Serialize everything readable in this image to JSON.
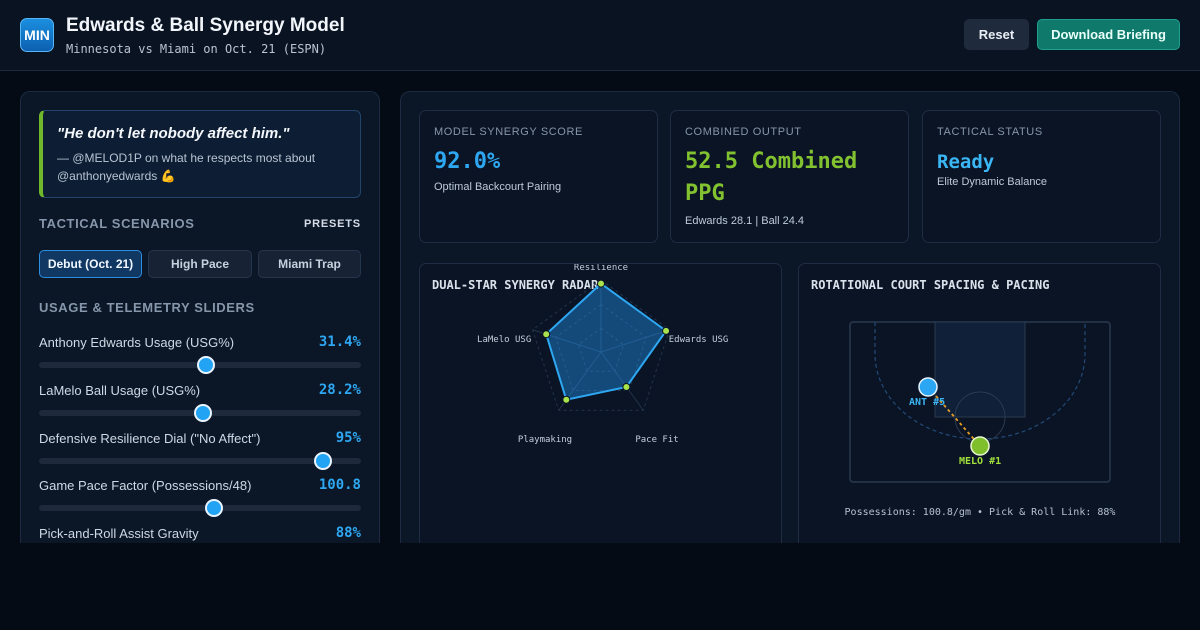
{
  "header": {
    "logo_text": "MIN",
    "title": "Edwards & Ball Synergy Model",
    "subtitle": "Minnesota vs Miami on Oct. 21 (ESPN)",
    "reset_label": "Reset",
    "download_label": "Download Briefing"
  },
  "quote": {
    "text": "\"He don't let nobody affect him.\"",
    "attribution": "— @MELOD1P on what he respects most about @anthonyedwards 💪"
  },
  "scenarios": {
    "heading": "TACTICAL SCENARIOS",
    "presets_label": "PRESETS",
    "buttons": [
      "Debut (Oct. 21)",
      "High Pace",
      "Miami Trap"
    ],
    "active_index": 0
  },
  "sliders": {
    "heading": "USAGE & TELEMETRY SLIDERS",
    "items": [
      {
        "label": "Anthony Edwards Usage (USG%)",
        "value": "31.4%",
        "fraction": 0.52
      },
      {
        "label": "LaMelo Ball Usage (USG%)",
        "value": "28.2%",
        "fraction": 0.51
      },
      {
        "label": "Defensive Resilience Dial (\"No Affect\")",
        "value": "95%",
        "fraction": 0.882
      },
      {
        "label": "Game Pace Factor (Possessions/48)",
        "value": "100.8",
        "fraction": 0.545
      },
      {
        "label": "Pick-and-Roll Assist Gravity",
        "value": "88%",
        "fraction": 0.8
      }
    ]
  },
  "stats": [
    {
      "label": "MODEL SYNERGY SCORE",
      "value": "92.0%",
      "sub": "Optimal Backcourt Pairing",
      "color": "#2ea7f2"
    },
    {
      "label": "COMBINED OUTPUT",
      "value": "52.5 Combined PPG",
      "sub": "Edwards 28.1 | Ball 24.4",
      "color": "#82c12f"
    },
    {
      "label": "TACTICAL STATUS",
      "value": "Ready",
      "sub": "Elite Dynamic Balance",
      "color": "#3bb6f5"
    }
  ],
  "radar": {
    "title": "DUAL-STAR SYNERGY RADAR",
    "axes": [
      "Resilience",
      "Edwards USG",
      "Pace Fit",
      "Playmaking",
      "LaMelo USG"
    ],
    "values": [
      0.95,
      0.95,
      0.6,
      0.82,
      0.8
    ]
  },
  "court": {
    "title": "ROTATIONAL COURT SPACING & PACING",
    "ant_label": "ANT #5",
    "melo_label": "MELO #1",
    "caption": "Possessions: 100.8/gm • Pick & Roll Link: 88%"
  }
}
